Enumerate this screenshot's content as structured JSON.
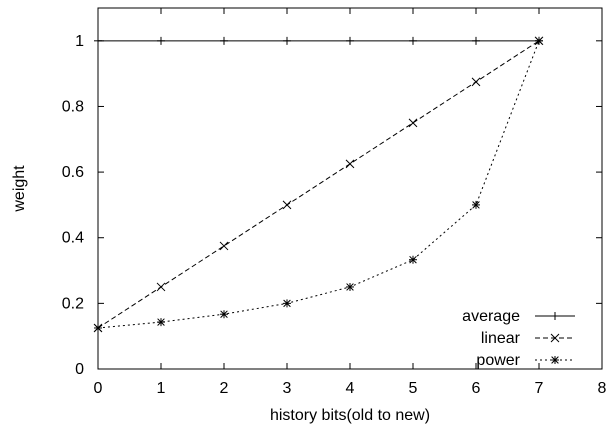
{
  "chart_data": {
    "type": "line",
    "title": "",
    "xlabel": "history bits(old to new)",
    "ylabel": "weight",
    "xlim": [
      0,
      8
    ],
    "ylim": [
      0,
      1.1
    ],
    "x_ticks": [
      0,
      1,
      2,
      3,
      4,
      5,
      6,
      7,
      8
    ],
    "y_ticks": [
      0,
      0.2,
      0.4,
      0.6,
      0.8,
      1
    ],
    "x_tick_labels": [
      "0",
      "1",
      "2",
      "3",
      "4",
      "5",
      "6",
      "7",
      "8"
    ],
    "y_tick_labels": [
      "0",
      "0.2",
      "0.4",
      "0.6",
      "0.8",
      "1"
    ],
    "grid": false,
    "legend_position": "bottom-right",
    "x": [
      0,
      1,
      2,
      3,
      4,
      5,
      6,
      7
    ],
    "series": [
      {
        "name": "average",
        "values": [
          1,
          1,
          1,
          1,
          1,
          1,
          1,
          1
        ],
        "line_style": "solid",
        "marker": "plus"
      },
      {
        "name": "linear",
        "values": [
          0.125,
          0.25,
          0.375,
          0.5,
          0.625,
          0.75,
          0.875,
          1
        ],
        "line_style": "dashed",
        "marker": "cross"
      },
      {
        "name": "power",
        "values": [
          0.125,
          0.143,
          0.167,
          0.2,
          0.25,
          0.333,
          0.5,
          1
        ],
        "line_style": "dotted",
        "marker": "star"
      }
    ]
  }
}
